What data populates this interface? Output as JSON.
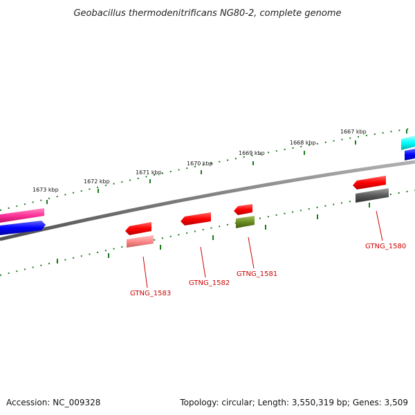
{
  "title": "Geobacillus thermodenitrificans NG80-2, complete genome",
  "footer": {
    "accession": "Accession: NC_009328",
    "topology": "Topology: circular; Length: 3,550,319 bp; Genes: 3,509"
  },
  "ticks": [
    {
      "label": "1673 kbp"
    },
    {
      "label": "1672 kbp"
    },
    {
      "label": "1671 kbp"
    },
    {
      "label": "1670 kbp"
    },
    {
      "label": "1669 kbp"
    },
    {
      "label": "1668 kbp"
    },
    {
      "label": "1667 kbp"
    }
  ],
  "genes": [
    {
      "label": "GTNG_1583"
    },
    {
      "label": "GTNG_1582"
    },
    {
      "label": "GTNG_1581"
    },
    {
      "label": "GTNG_1580"
    }
  ],
  "colors": {
    "backbone": "#808080",
    "tick": "#1a7a1a",
    "label": "#cc0000",
    "cds": "#ff0000",
    "rna": "#ff8080",
    "grey": "#606060",
    "olive": "#6b8e23",
    "magenta": "#ff3399",
    "blue": "#0000ff",
    "cyan": "#00ffff"
  }
}
